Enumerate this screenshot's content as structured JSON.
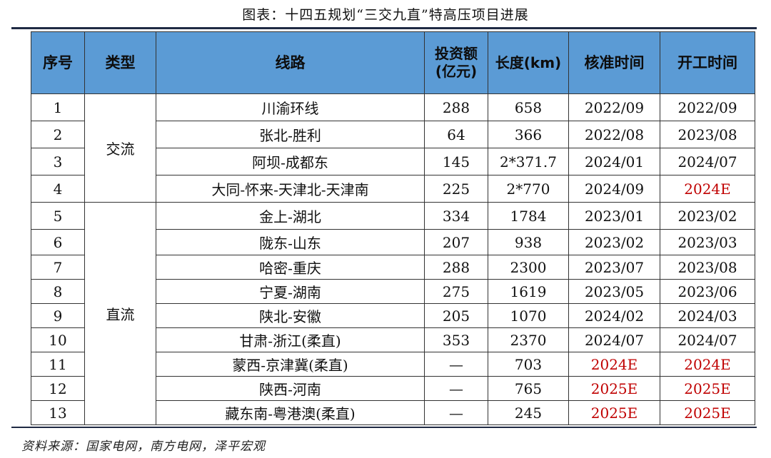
{
  "title": "图表：十四五规划“三交九直”特高压项目进展",
  "table": {
    "headers": {
      "index": "序号",
      "type": "类型",
      "route": "线路",
      "investment": "投资额(亿元)",
      "length": "长度(km)",
      "approval": "核准时间",
      "start": "开工时间"
    },
    "groups": [
      {
        "label": "交流",
        "rows": 4
      },
      {
        "label": "直流",
        "rows": 9
      }
    ],
    "rows": [
      {
        "idx": "1",
        "route": "川渝环线",
        "investment": "288",
        "length": "658",
        "approval": "2022/09",
        "start": "2022/09"
      },
      {
        "idx": "2",
        "route": "张北-胜利",
        "investment": "64",
        "length": "366",
        "approval": "2022/08",
        "start": "2023/08"
      },
      {
        "idx": "3",
        "route": "阿坝-成都东",
        "investment": "145",
        "length": "2*371.7",
        "approval": "2024/01",
        "start": "2024/07"
      },
      {
        "idx": "4",
        "route": "大同-怀来-天津北-天津南",
        "investment": "225",
        "length": "2*770",
        "approval": "2024/09",
        "start": "2024E"
      },
      {
        "idx": "5",
        "route": "金上-湖北",
        "investment": "334",
        "length": "1784",
        "approval": "2023/01",
        "start": "2023/02"
      },
      {
        "idx": "6",
        "route": "陇东-山东",
        "investment": "207",
        "length": "938",
        "approval": "2023/02",
        "start": "2023/03"
      },
      {
        "idx": "7",
        "route": "哈密-重庆",
        "investment": "288",
        "length": "2300",
        "approval": "2023/07",
        "start": "2023/08"
      },
      {
        "idx": "8",
        "route": "宁夏-湖南",
        "investment": "275",
        "length": "1619",
        "approval": "2023/05",
        "start": "2023/06"
      },
      {
        "idx": "9",
        "route": "陕北-安徽",
        "investment": "205",
        "length": "1070",
        "approval": "2024/02",
        "start": "2024/03"
      },
      {
        "idx": "10",
        "route": "甘肃-浙江(柔直)",
        "investment": "353",
        "length": "2370",
        "approval": "2024/07",
        "start": "2024/07"
      },
      {
        "idx": "11",
        "route": "蒙西-京津冀(柔直)",
        "investment": "—",
        "length": "703",
        "approval": "2024E",
        "start": "2024E"
      },
      {
        "idx": "12",
        "route": "陕西-河南",
        "investment": "—",
        "length": "765",
        "approval": "2025E",
        "start": "2025E"
      },
      {
        "idx": "13",
        "route": "藏东南-粤港澳(柔直)",
        "investment": "—",
        "length": "245",
        "approval": "2025E",
        "start": "2025E"
      }
    ],
    "estimate_color": "#c00000",
    "header_color": "#5b9bd5"
  },
  "source": "资料来源：国家电网，南方电网，泽平宏观"
}
